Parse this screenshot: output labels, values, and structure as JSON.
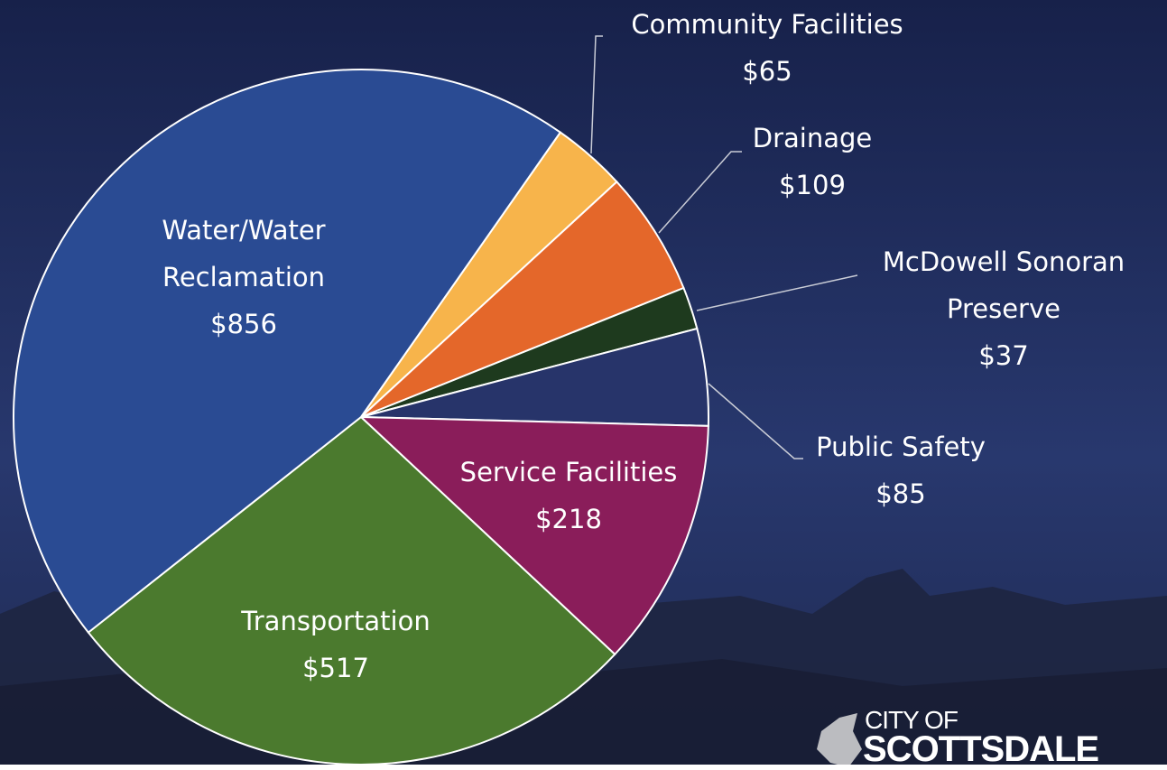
{
  "chart_data": {
    "type": "pie",
    "categories": [
      "Community Facilities",
      "Drainage",
      "McDowell Sonoran Preserve",
      "Public Safety",
      "Service Facilities",
      "Transportation",
      "Water/Water Reclamation"
    ],
    "values": [
      65,
      109,
      37,
      85,
      218,
      517,
      856
    ],
    "value_labels": [
      "$65",
      "$109",
      "$37",
      "$85",
      "$218",
      "$517",
      "$856"
    ],
    "colors": [
      "#f7b44b",
      "#e4672a",
      "#1e3a1e",
      "#27346a",
      "#8a1d5a",
      "#4b7a2e",
      "#2a4b93"
    ]
  },
  "logo": {
    "line1": "CITY OF",
    "line2": "SCOTTSDALE"
  }
}
